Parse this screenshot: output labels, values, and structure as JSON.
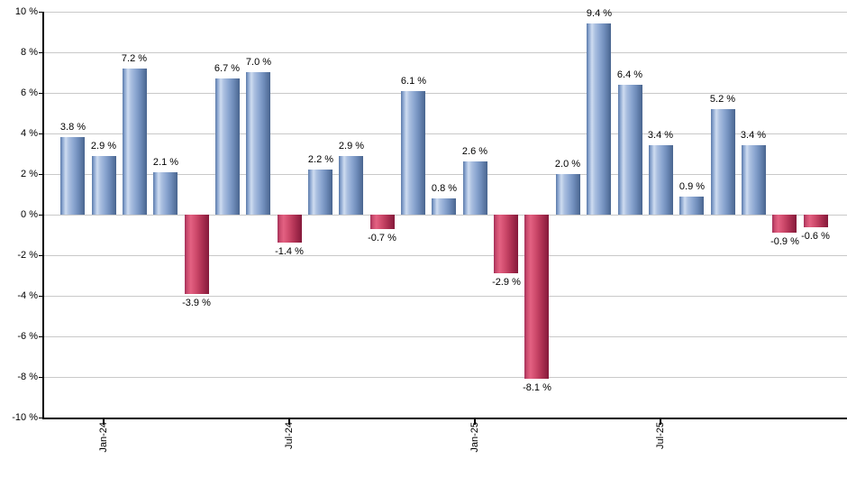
{
  "chart_data": {
    "type": "bar",
    "title": "",
    "xlabel": "",
    "ylabel": "",
    "ylim": [
      -10,
      10
    ],
    "grid": true,
    "legend": "none",
    "y_ticks": [
      "10 %",
      "8 %",
      "6 %",
      "4 %",
      "2 %",
      "0 %",
      "-2 %",
      "-4 %",
      "-6 %",
      "-8 %",
      "-10 %"
    ],
    "values": [
      3.8,
      2.9,
      7.2,
      2.1,
      -3.9,
      6.7,
      7.0,
      -1.4,
      2.2,
      2.9,
      -0.7,
      6.1,
      0.8,
      2.6,
      -2.9,
      -8.1,
      2.0,
      9.4,
      6.4,
      3.4,
      0.9,
      5.2,
      3.4,
      -0.9,
      -0.6
    ],
    "bar_labels": [
      "3.8 %",
      "2.9 %",
      "7.2 %",
      "2.1 %",
      "-3.9 %",
      "6.7 %",
      "7.0 %",
      "-1.4 %",
      "2.2 %",
      "2.9 %",
      "-0.7 %",
      "6.1 %",
      "0.8 %",
      "2.6 %",
      "-2.9 %",
      "-8.1 %",
      "2.0 %",
      "9.4 %",
      "6.4 %",
      "3.4 %",
      "0.9 %",
      "5.2 %",
      "3.4 %",
      "-0.9 %",
      "-0.6 %"
    ],
    "x_ticks": [
      {
        "bar_index": 1,
        "label": "Jan-24"
      },
      {
        "bar_index": 7,
        "label": "Jul-24"
      },
      {
        "bar_index": 13,
        "label": "Jan-25"
      },
      {
        "bar_index": 19,
        "label": "Jul-25"
      }
    ],
    "colors": {
      "positive": "#7d9cc9",
      "negative": "#c84a6b",
      "gridline": "#c9c9c9",
      "axis": "#000000",
      "label_text": "#000000",
      "background": "#ffffff"
    }
  }
}
